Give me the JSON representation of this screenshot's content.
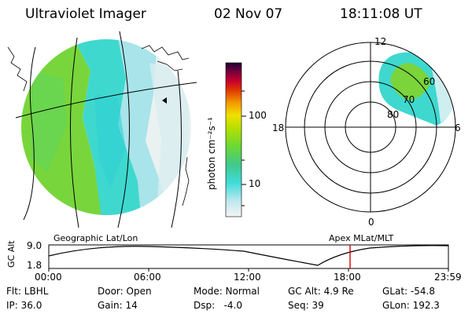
{
  "header": {
    "instrument": "Ultraviolet Imager",
    "date": "02 Nov 07",
    "time": "18:11:08 UT"
  },
  "colorbar": {
    "unit_label": "photon cm⁻²s⁻¹",
    "ticks": [
      "100",
      "10"
    ],
    "scale": "log"
  },
  "polar": {
    "mlt_labels": [
      "12",
      "18",
      "6",
      "0"
    ],
    "mlat_labels": [
      "60",
      "70",
      "80"
    ]
  },
  "projection_labels": {
    "left": "Geographic Lat/Lon",
    "right": "Apex MLat/MLT"
  },
  "altitude_plot": {
    "ylabel": "GC Alt",
    "y_ticks": [
      "9.0",
      "1.8"
    ],
    "x_ticks": [
      "00:00",
      "06:00",
      "12:00",
      "18:00",
      "23:59"
    ],
    "current_time_marker_color": "#d40000"
  },
  "status": {
    "row1": [
      {
        "label": "Flt: LBHL"
      },
      {
        "label": "Door: Open"
      },
      {
        "label": "Mode: Normal"
      },
      {
        "label": "GC Alt: 4.9 Re"
      },
      {
        "label": "GLat: -54.8"
      }
    ],
    "row2": [
      {
        "label": "IP: 36.0"
      },
      {
        "label": "Gain: 14"
      },
      {
        "label": "Dsp:   -4.0"
      },
      {
        "label": "Seq: 39"
      },
      {
        "label": "GLon: 192.3"
      }
    ]
  }
}
